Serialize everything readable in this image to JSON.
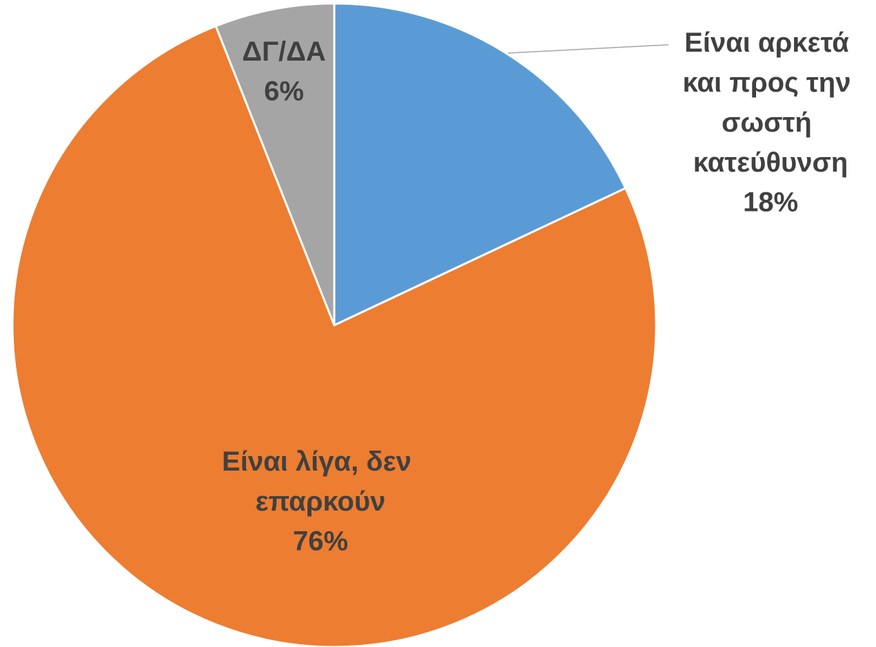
{
  "chart_data": {
    "type": "pie",
    "categories": [
      "Είναι αρκετά και προς την σωστή κατεύθυνση",
      "Είναι λίγα, δεν επαρκούν",
      "ΔΓ/ΔΑ"
    ],
    "values": [
      18,
      76,
      6
    ],
    "value_labels": [
      "18%",
      "76%",
      "6%"
    ],
    "colors": [
      "#5b9bd5",
      "#ed7d31",
      "#a5a5a5"
    ]
  }
}
